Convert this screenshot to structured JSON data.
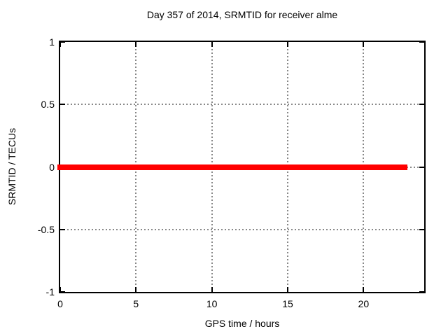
{
  "chart_data": {
    "type": "line",
    "title": "Day 357 of 2014, SRMTID for receiver alme",
    "xlabel": "GPS time / hours",
    "ylabel": "SRMTID / TECUs",
    "xlim": [
      0,
      24
    ],
    "ylim": [
      -1,
      1
    ],
    "xtick_values": [
      0,
      5,
      10,
      15,
      20
    ],
    "xtick_labels": [
      "0",
      "5",
      "10",
      "15",
      "20"
    ],
    "ytick_values": [
      1,
      0.5,
      0,
      -0.5,
      -1
    ],
    "ytick_labels": [
      "1",
      "0.5",
      "0",
      "-0.5",
      "-1"
    ],
    "grid_x": [
      5,
      10,
      15,
      20
    ],
    "grid_y": [
      0.5,
      0,
      -0.5
    ],
    "grid": true,
    "legend": "none",
    "colors": {
      "line": "#ff0000",
      "grid": "#888888",
      "border": "#000000",
      "background": "#ffffff",
      "text": "#000000"
    },
    "series": [
      {
        "name": "SRMTID",
        "color": "#ff0000",
        "y": 0,
        "x_start": 0,
        "x_end": 22.9,
        "points": [
          [
            0,
            0
          ],
          [
            22.9,
            0
          ]
        ]
      }
    ]
  }
}
